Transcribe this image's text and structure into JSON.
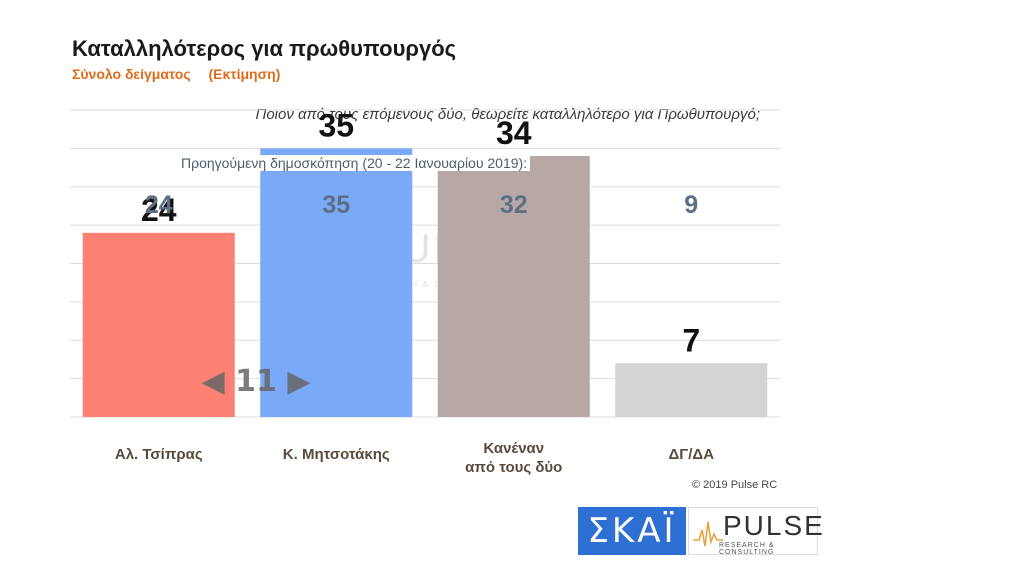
{
  "header": {
    "title": "Καταλληλότερος για πρωθυπουργός",
    "subtitle_left": "Σύνολο δείγματος",
    "subtitle_right": "(Εκτίμηση)",
    "question": "Ποιον από τους επόμενους δύο, θεωρείτε καταλληλότερο για Πρωθυπουργό;",
    "previous_note": "Προηγούμενη δημοσκόπηση (20 - 22 Ιανουαρίου 2019):"
  },
  "chart_data": {
    "type": "bar",
    "categories": [
      "Αλ. Τσίπρας",
      "Κ. Μητσοτάκης",
      "Κανέναν από τους δύο",
      "ΔΓ/ΔΑ"
    ],
    "series": [
      {
        "values": [
          24,
          35,
          34,
          7
        ]
      }
    ],
    "previous_values": [
      24,
      35,
      32,
      9
    ],
    "colors": [
      "#fc8073",
      "#7aa9f7",
      "#b8a8a5",
      "#d4d4d4"
    ],
    "gap_annotation": "◀ 11 ▶",
    "ylim": [
      0,
      40
    ],
    "grid": true
  },
  "watermark": {
    "name": "PULSE",
    "tag": "RESEARCH & CONSULTING"
  },
  "footer": {
    "copyright": "© 2019 Pulse RC",
    "logo_skai": "ΣΚΑΪ",
    "logo_pulse": "PULSE",
    "logo_pulse_tag": "RESEARCH & CONSULTING"
  }
}
